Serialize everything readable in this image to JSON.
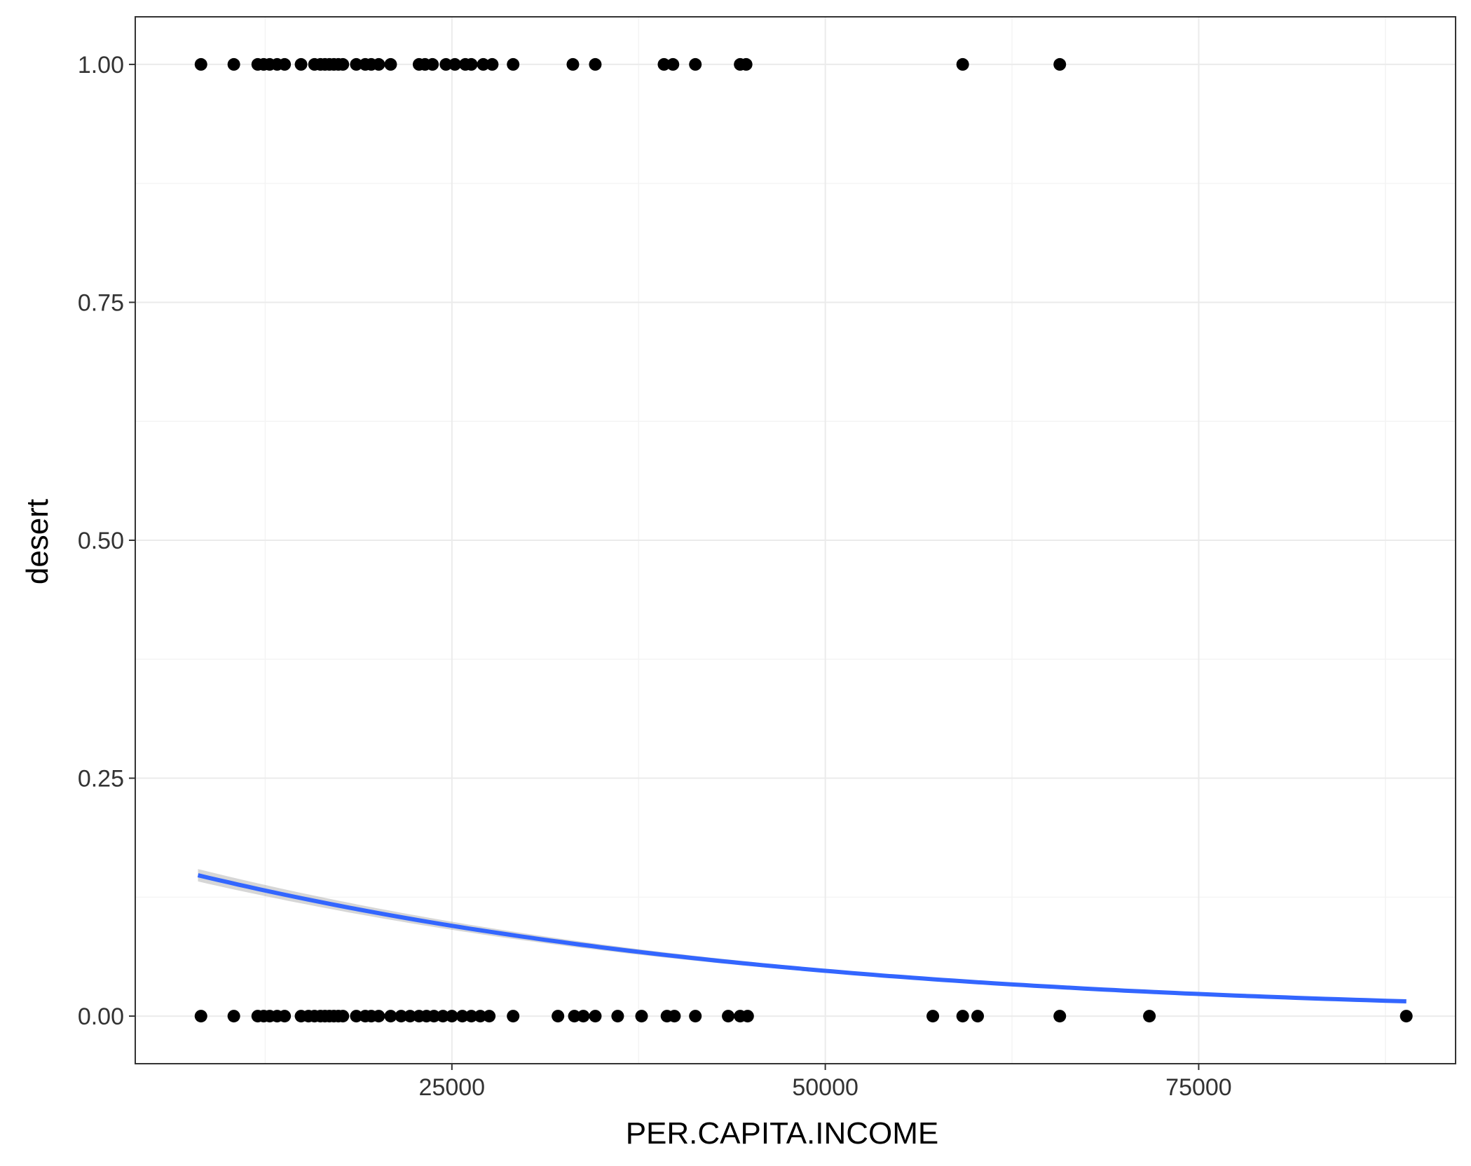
{
  "chart_data": {
    "type": "scatter",
    "xlabel": "PER.CAPITA.INCOME",
    "ylabel": "desert",
    "xlim": [
      3800,
      92200
    ],
    "ylim": [
      -0.05,
      1.05
    ],
    "x_ticks": [
      25000,
      50000,
      75000
    ],
    "x_tick_labels": [
      "25000",
      "50000",
      "75000"
    ],
    "y_ticks": [
      0,
      0.25,
      0.5,
      0.75,
      1
    ],
    "y_tick_labels": [
      "0.00",
      "0.25",
      "0.50",
      "0.75",
      "1.00"
    ],
    "grid": true,
    "legend": "none",
    "colors": {
      "points": "#000000",
      "fit_line": "#3366FF",
      "confidence_band": "#999999",
      "grid_major": "#EBEBEB",
      "grid_minor": "#F4F4F4",
      "panel_border": "#333333"
    },
    "series": [
      {
        "type": "scatter",
        "points_y1": [
          8200,
          10400,
          12000,
          12400,
          12800,
          13300,
          13800,
          14900,
          15800,
          16200,
          16500,
          16800,
          17100,
          17400,
          17700,
          18600,
          19200,
          19600,
          20100,
          20900,
          22800,
          23200,
          23700,
          24600,
          25200,
          25900,
          26300,
          27100,
          27700,
          29100,
          33100,
          34600,
          39200,
          39800,
          41300,
          44300,
          44700,
          59200,
          65700
        ],
        "points_y0": [
          8200,
          10400,
          12000,
          12400,
          12800,
          13300,
          13800,
          14900,
          15400,
          15800,
          16200,
          16500,
          16800,
          17100,
          17400,
          17700,
          18600,
          19200,
          19600,
          20100,
          20900,
          21600,
          22200,
          22800,
          23300,
          23800,
          24400,
          25000,
          25700,
          26300,
          26900,
          27500,
          29100,
          32100,
          33200,
          33800,
          34600,
          36100,
          37700,
          39400,
          39900,
          41300,
          43500,
          44300,
          44800,
          57200,
          59200,
          60200,
          65700,
          71700,
          88900
        ]
      },
      {
        "type": "logistic_fit",
        "x_range": [
          8000,
          88900
        ],
        "y_start": 0.148,
        "y_end": 0.0155,
        "band_halfwidth_start": 0.006
      }
    ]
  }
}
